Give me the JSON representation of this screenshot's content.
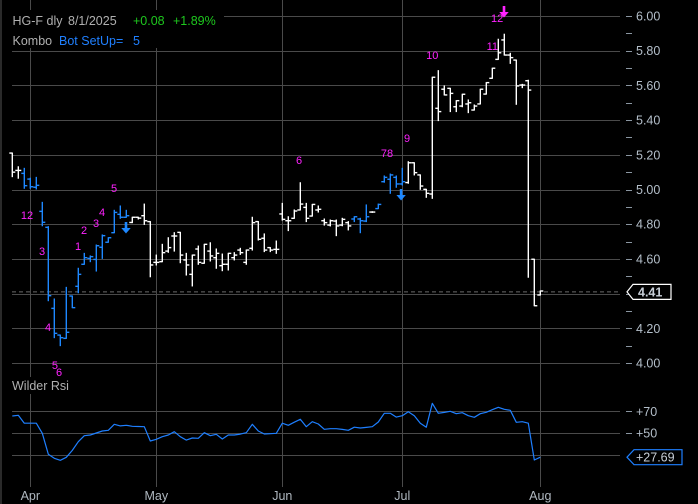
{
  "header": {
    "symbol_interval": "HG-F dly",
    "date": "8/1/2025",
    "change": "+0.08",
    "change_pct": "+1.89%",
    "study_name": "Kombo",
    "setup_label": "Bot SetUp=",
    "setup_value": "5"
  },
  "rsi_panel": {
    "title": "Wilder Rsi"
  },
  "colors": {
    "background": "#000000",
    "grid": "#4a4a4a",
    "axis_text": "#b4bfca",
    "header_text": "#b0b0b0",
    "positive": "#1ec81e",
    "study_blue": "#2080ff",
    "setup_bars": "#1e88ff",
    "default_bars": "#ffffff",
    "td_count": "#ff22ff",
    "rsi_line": "#1e7fff",
    "price_tag_border": "#ffffff",
    "rsi_tag_border": "#1e7fff",
    "tag_text": "#c8cfd8"
  },
  "chart_data": [
    {
      "type": "ohlc",
      "title": "HG-F dly",
      "ylabel": "Price",
      "ylim": [
        3.95,
        6.05
      ],
      "y_gridlines": [
        6.0,
        5.8,
        5.6,
        5.4,
        5.2,
        5.0,
        4.8,
        4.6,
        4.4,
        4.2,
        4.0
      ],
      "y_tick_labels": [
        "6.00",
        "5.80",
        "5.60",
        "5.40",
        "5.20",
        "5.00",
        "4.80",
        "4.60",
        "4.20",
        "4.00"
      ],
      "x_labels": [
        {
          "label": "Apr",
          "bar": 3
        },
        {
          "label": "May",
          "bar": 24
        },
        {
          "label": "Jun",
          "bar": 45
        },
        {
          "label": "Jul",
          "bar": 65
        },
        {
          "label": "Aug",
          "bar": 88
        }
      ],
      "last_price": 4.41,
      "last_price_label": "4.41",
      "bar_fields": [
        "open",
        "high",
        "low",
        "close",
        "color"
      ],
      "bars": [
        [
          5.21,
          5.21,
          5.074,
          5.1,
          "w"
        ],
        [
          5.11,
          5.131,
          5.065,
          5.11,
          "w"
        ],
        [
          5.093,
          5.122,
          5.007,
          5.022,
          "b"
        ],
        [
          5.06,
          5.065,
          5.007,
          5.016,
          "b"
        ],
        [
          5.013,
          5.07,
          5.003,
          5.024,
          "b"
        ],
        [
          4.874,
          4.926,
          4.791,
          4.811,
          "b"
        ],
        [
          4.782,
          4.786,
          4.359,
          4.388,
          "b"
        ],
        [
          4.315,
          4.369,
          4.146,
          4.171,
          "b"
        ],
        [
          4.161,
          4.161,
          4.1,
          4.146,
          "b"
        ],
        [
          4.142,
          4.436,
          4.142,
          4.177,
          "b"
        ],
        [
          4.386,
          4.386,
          4.319,
          4.319,
          "b"
        ],
        [
          4.442,
          4.546,
          4.405,
          4.511,
          "b"
        ],
        [
          4.569,
          4.632,
          4.569,
          4.607,
          "b"
        ],
        [
          4.603,
          4.617,
          4.584,
          4.613,
          "b"
        ],
        [
          4.597,
          4.68,
          4.53,
          4.676,
          "b"
        ],
        [
          4.667,
          4.738,
          4.603,
          4.734,
          "b"
        ],
        [
          4.696,
          4.722,
          4.696,
          4.722,
          "b"
        ],
        [
          4.751,
          4.88,
          4.751,
          4.868,
          "b"
        ],
        [
          4.857,
          4.905,
          4.834,
          4.84,
          "b"
        ],
        [
          4.84,
          4.88,
          4.84,
          4.849,
          "b"
        ],
        [
          4.81,
          4.84,
          4.809,
          4.84,
          "w"
        ],
        [
          4.84,
          4.84,
          4.83,
          4.835,
          "w"
        ],
        [
          4.849,
          4.916,
          4.799,
          4.82,
          "w"
        ],
        [
          4.815,
          4.815,
          4.497,
          4.565,
          "w"
        ],
        [
          4.58,
          4.622,
          4.565,
          4.58,
          "w"
        ],
        [
          4.584,
          4.684,
          4.584,
          4.636,
          "w"
        ],
        [
          4.645,
          4.722,
          4.638,
          4.665,
          "w"
        ],
        [
          4.732,
          4.751,
          4.645,
          4.732,
          "w"
        ],
        [
          4.753,
          4.753,
          4.578,
          4.622,
          "w"
        ],
        [
          4.594,
          4.632,
          4.507,
          4.565,
          "w"
        ],
        [
          4.511,
          4.622,
          4.444,
          4.622,
          "w"
        ],
        [
          4.657,
          4.674,
          4.569,
          4.58,
          "w"
        ],
        [
          4.575,
          4.684,
          4.575,
          4.684,
          "w"
        ],
        [
          4.645,
          4.693,
          4.588,
          4.617,
          "w"
        ],
        [
          4.607,
          4.657,
          4.546,
          4.632,
          "w"
        ],
        [
          4.561,
          4.628,
          4.532,
          4.569,
          "w"
        ],
        [
          4.569,
          4.632,
          4.536,
          4.632,
          "w"
        ],
        [
          4.607,
          4.636,
          4.594,
          4.622,
          "w"
        ],
        [
          4.651,
          4.661,
          4.626,
          4.636,
          "w"
        ],
        [
          4.58,
          4.651,
          4.569,
          4.651,
          "w"
        ],
        [
          4.661,
          4.84,
          4.651,
          4.809,
          "w"
        ],
        [
          4.815,
          4.815,
          4.709,
          4.713,
          "w"
        ],
        [
          4.719,
          4.744,
          4.642,
          4.651,
          "w"
        ],
        [
          4.665,
          4.665,
          4.642,
          4.651,
          "w"
        ],
        [
          4.655,
          4.703,
          4.632,
          4.655,
          "w"
        ],
        [
          4.859,
          4.92,
          4.824,
          4.828,
          "w"
        ],
        [
          4.82,
          4.843,
          4.763,
          4.82,
          "w"
        ],
        [
          4.834,
          4.882,
          4.834,
          4.876,
          "w"
        ],
        [
          4.882,
          5.039,
          4.882,
          4.916,
          "w"
        ],
        [
          4.897,
          4.92,
          4.815,
          4.834,
          "w"
        ],
        [
          4.847,
          4.914,
          4.847,
          4.914,
          "w"
        ],
        [
          4.882,
          4.905,
          4.87,
          4.886,
          "w"
        ],
        [
          4.82,
          4.83,
          4.795,
          4.809,
          "w"
        ],
        [
          4.795,
          4.824,
          4.79,
          4.82,
          "w"
        ],
        [
          4.818,
          4.824,
          4.734,
          4.79,
          "w"
        ],
        [
          4.795,
          4.834,
          4.791,
          4.828,
          "w"
        ],
        [
          4.809,
          4.815,
          4.767,
          4.79,
          "w"
        ],
        [
          4.83,
          4.843,
          4.815,
          4.843,
          "b"
        ],
        [
          4.83,
          4.834,
          4.751,
          4.82,
          "b"
        ],
        [
          4.818,
          4.911,
          4.815,
          4.843,
          "b"
        ],
        [
          4.87,
          4.872,
          4.868,
          4.87,
          "w"
        ],
        [
          4.89,
          4.916,
          4.89,
          4.914,
          "b"
        ],
        [
          5.045,
          5.078,
          5.042,
          5.07,
          "b"
        ],
        [
          5.059,
          5.089,
          4.978,
          5.084,
          "b"
        ],
        [
          5.07,
          5.078,
          5.013,
          5.032,
          "b"
        ],
        [
          5.032,
          5.122,
          5.026,
          5.045,
          "b"
        ],
        [
          5.04,
          5.16,
          5.036,
          5.154,
          "w"
        ],
        [
          5.154,
          5.154,
          5.084,
          5.097,
          "w"
        ],
        [
          5.084,
          5.084,
          5.001,
          5.02,
          "w"
        ],
        [
          5.001,
          5.001,
          4.955,
          4.978,
          "w"
        ],
        [
          4.974,
          5.647,
          4.949,
          5.647,
          "w"
        ],
        [
          5.468,
          5.685,
          5.397,
          5.449,
          "w"
        ],
        [
          5.578,
          5.597,
          5.545,
          5.545,
          "w"
        ],
        [
          5.583,
          5.583,
          5.449,
          5.554,
          "w"
        ],
        [
          5.477,
          5.512,
          5.449,
          5.512,
          "w"
        ],
        [
          5.481,
          5.549,
          5.477,
          5.549,
          "w"
        ],
        [
          5.493,
          5.516,
          5.443,
          5.5,
          "w"
        ],
        [
          5.458,
          5.487,
          5.458,
          5.481,
          "w"
        ],
        [
          5.493,
          5.578,
          5.493,
          5.578,
          "w"
        ],
        [
          5.55,
          5.616,
          5.55,
          5.616,
          "w"
        ],
        [
          5.641,
          5.699,
          5.641,
          5.699,
          "w"
        ],
        [
          5.75,
          5.866,
          5.75,
          5.788,
          "w"
        ],
        [
          5.862,
          5.895,
          5.775,
          5.775,
          "w"
        ],
        [
          5.775,
          5.785,
          5.727,
          5.76,
          "w"
        ],
        [
          5.746,
          5.746,
          5.491,
          5.597,
          "w"
        ],
        [
          5.602,
          5.606,
          5.587,
          5.602,
          "w"
        ],
        [
          5.627,
          5.63,
          4.494,
          5.573,
          "w"
        ],
        [
          4.598,
          4.598,
          4.33,
          4.33,
          "w"
        ],
        [
          4.392,
          4.415,
          4.392,
          4.415,
          "w"
        ]
      ],
      "annotations": [
        {
          "text": "12",
          "bar": 2.45,
          "price": 4.853
        },
        {
          "text": "3",
          "bar": 4.95,
          "price": 4.645
        },
        {
          "text": "4",
          "bar": 5.95,
          "price": 4.207
        },
        {
          "text": "5",
          "bar": 7.1,
          "price": 3.988
        },
        {
          "text": "6",
          "bar": 7.8,
          "price": 3.948
        },
        {
          "text": "1",
          "bar": 10.95,
          "price": 4.674
        },
        {
          "text": "2",
          "bar": 11.95,
          "price": 4.767
        },
        {
          "text": "3",
          "bar": 13.95,
          "price": 4.807
        },
        {
          "text": "4",
          "bar": 14.95,
          "price": 4.87
        },
        {
          "text": "5",
          "bar": 16.95,
          "price": 5.009
        },
        {
          "text": "6",
          "bar": 47.8,
          "price": 5.17
        },
        {
          "text": "78",
          "bar": 62.45,
          "price": 5.21
        },
        {
          "text": "9",
          "bar": 65.8,
          "price": 5.297
        },
        {
          "text": "10",
          "bar": 70.0,
          "price": 5.775
        },
        {
          "text": "11",
          "bar": 80.0,
          "price": 5.827
        },
        {
          "text": "12",
          "bar": 80.8,
          "price": 5.988
        }
      ],
      "arrows": [
        {
          "direction": "down",
          "color": "blue",
          "bar": 18.95,
          "price": 4.778
        },
        {
          "direction": "down",
          "color": "blue",
          "bar": 64.8,
          "price": 4.968
        },
        {
          "direction": "down",
          "color": "magenta",
          "bar": 81.95,
          "price": 6.023
        }
      ]
    },
    {
      "type": "line",
      "title": "Wilder Rsi",
      "ylim": [
        22,
        80
      ],
      "y_gridlines": [
        70,
        50,
        30
      ],
      "y_tick_labels": [
        "+70",
        "+50"
      ],
      "last_value": 27.69,
      "last_value_label": "+27.69",
      "values": [
        65.7,
        66.3,
        59,
        59,
        59,
        49.7,
        30.5,
        26.7,
        24.8,
        27.6,
        34,
        42,
        47.5,
        48.2,
        50,
        51.8,
        52.5,
        58,
        56.5,
        57.1,
        56.2,
        56,
        55.8,
        42.6,
        44.2,
        46.6,
        48.2,
        51.2,
        46.6,
        43.5,
        45.4,
        45.1,
        50.3,
        47.5,
        48.8,
        44.5,
        48.2,
        48.2,
        49,
        50.3,
        58,
        51.8,
        49.1,
        49.4,
        49.7,
        59,
        57.1,
        60,
        62.6,
        55.8,
        60.4,
        58.3,
        53.4,
        54,
        54,
        53.3,
        52.5,
        55.3,
        54.6,
        55.2,
        55.8,
        60.1,
        68.2,
        68.2,
        64.7,
        65.9,
        69.6,
        65.9,
        59,
        55.3,
        77.4,
        68.2,
        69,
        70,
        67.8,
        68.7,
        65.9,
        64.5,
        67.8,
        69.1,
        71.5,
        73.7,
        71.8,
        70.9,
        59.9,
        60.4,
        59,
        25.1,
        27.69
      ]
    }
  ]
}
